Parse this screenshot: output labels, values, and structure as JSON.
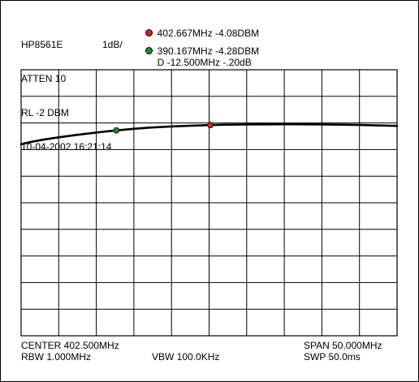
{
  "header": {
    "instrument": "HP8561E",
    "atten": "ATTEN 10",
    "ref_level": "RL -2 DBM",
    "scale": "1dB/",
    "datetime": "10-04-2002 16:21:14"
  },
  "markers": [
    {
      "label": "402.667MHz -4.08DBM",
      "color": "#d62020"
    },
    {
      "label": "390.167MHz -4.28DBM",
      "color": "#1f8a3a"
    },
    {
      "label": "D -12.500MHz -.20dB"
    }
  ],
  "footer": {
    "center": "CENTER 402.500MHz",
    "rbw": "RBW 1.000MHz",
    "vbw": "VBW 100.0KHz",
    "span": "SPAN 50.000MHz",
    "sweep": "SWP 50.0ms"
  },
  "chart_data": {
    "type": "line",
    "x_unit": "MHz",
    "y_unit": "dBm",
    "xlim": [
      377.5,
      427.5
    ],
    "ylim": [
      -12,
      -2
    ],
    "grid": true,
    "series": [
      {
        "x": [
          377.5,
          380,
          385,
          390,
          395,
          400,
          405,
          410,
          415,
          420,
          425,
          427.5
        ],
        "y": [
          -4.8,
          -4.64,
          -4.44,
          -4.28,
          -4.16,
          -4.1,
          -4.06,
          -4.05,
          -4.05,
          -4.06,
          -4.09,
          -4.11
        ]
      }
    ],
    "marker_points": [
      {
        "x": 402.667,
        "y": -4.08,
        "color": "#d62020"
      },
      {
        "x": 390.167,
        "y": -4.28,
        "color": "#1f8a3a"
      }
    ]
  }
}
